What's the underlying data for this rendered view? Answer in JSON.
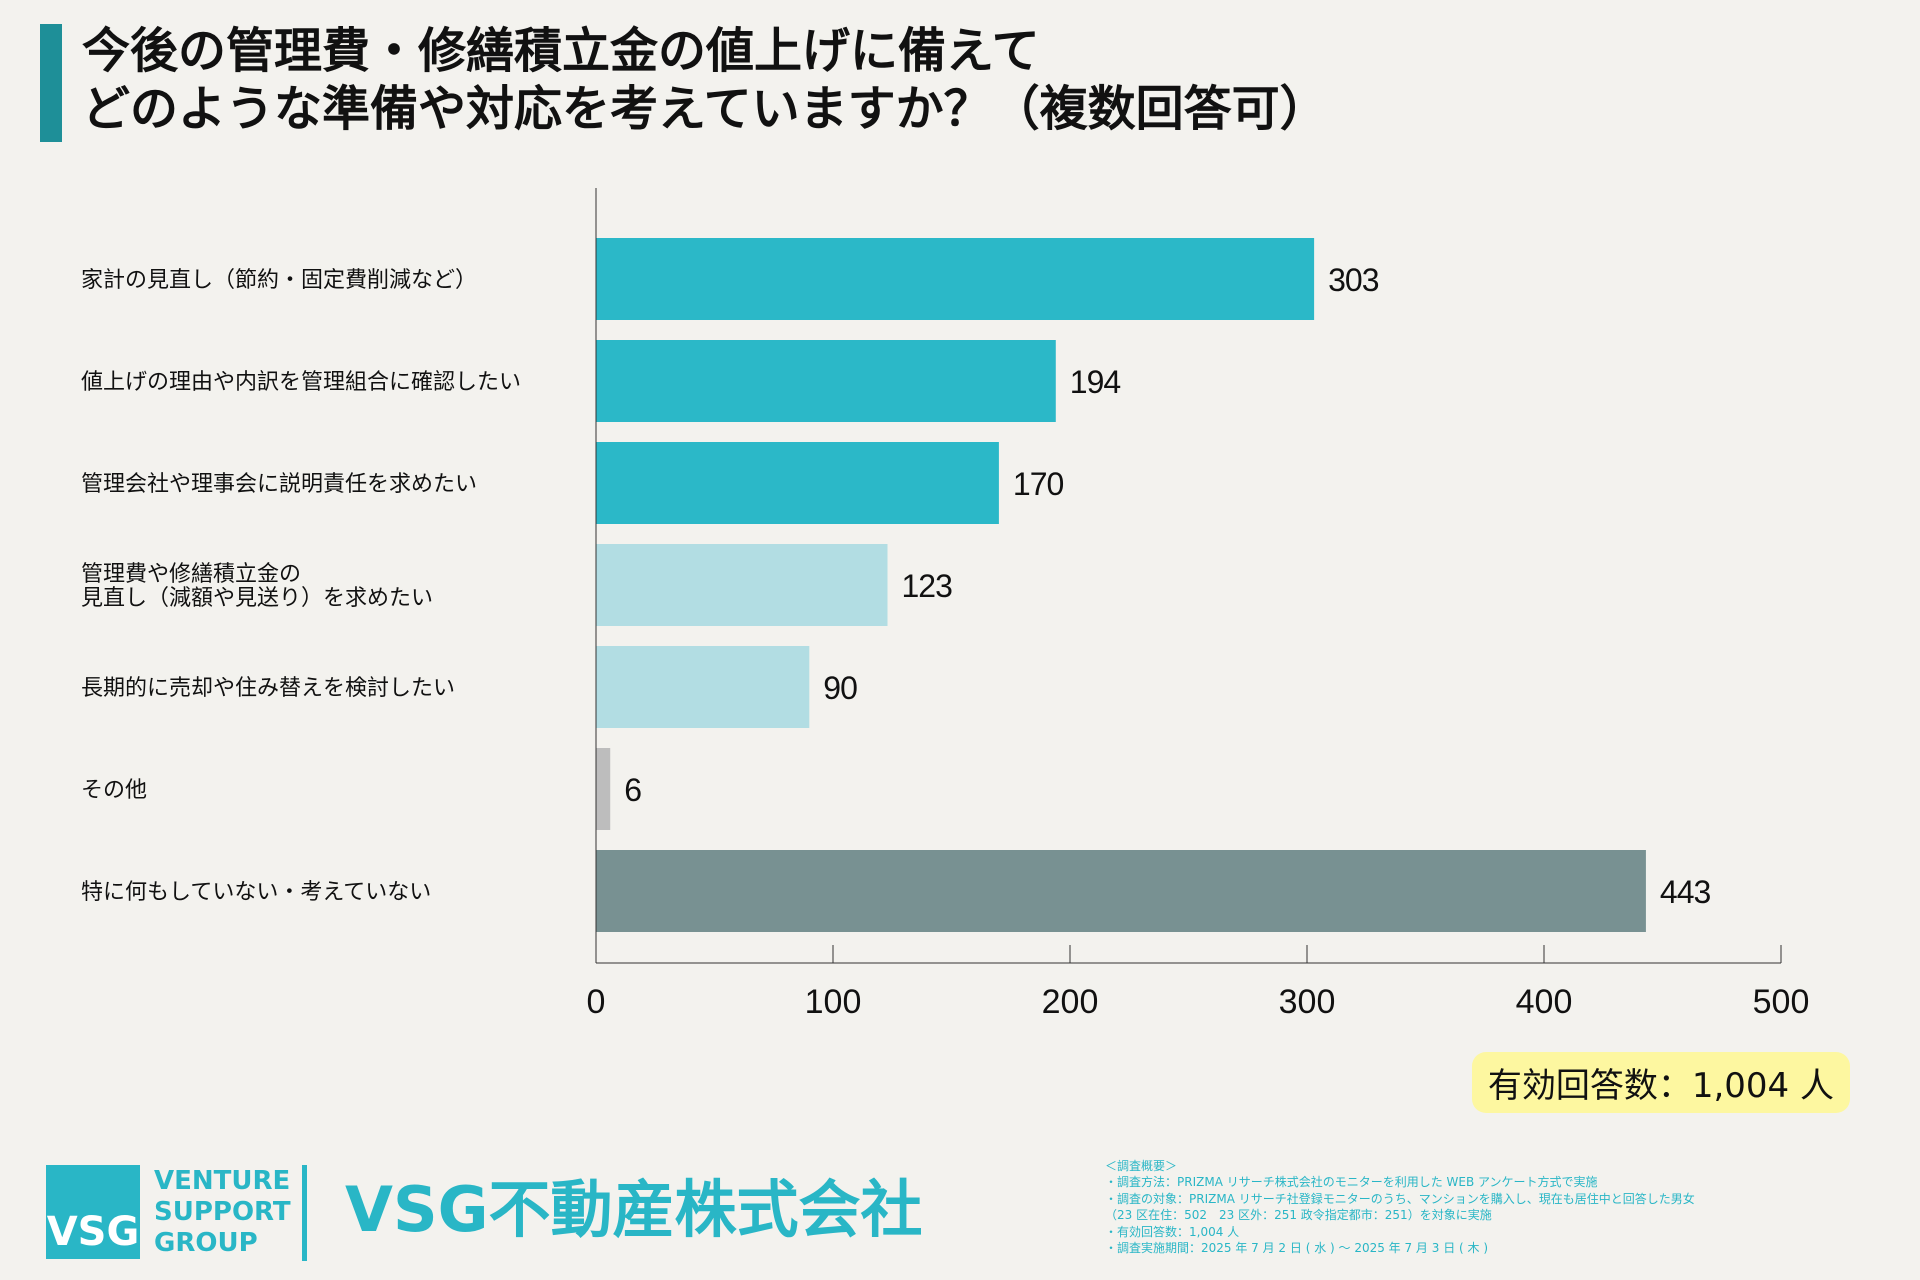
{
  "title": {
    "line1": "今後の管理費・修繕積立金の値上げに備えて",
    "line2": "どのような準備や対応を考えていますか？（複数回答可）"
  },
  "chart_data": {
    "type": "bar",
    "orientation": "horizontal",
    "categories": [
      [
        "家計の見直し（節約・固定費削減など）"
      ],
      [
        "値上げの理由や内訳を管理組合に確認したい"
      ],
      [
        "管理会社や理事会に説明責任を求めたい"
      ],
      [
        "管理費や修繕積立金の",
        "見直し（減額や見送り）を求めたい"
      ],
      [
        "長期的に売却や住み替えを検討したい"
      ],
      [
        "その他"
      ],
      [
        "特に何もしていない・考えていない"
      ]
    ],
    "values": [
      303,
      194,
      170,
      123,
      90,
      6,
      443
    ],
    "value_labels": [
      "303",
      "194",
      "170",
      "123",
      "90",
      "6",
      "443"
    ],
    "bar_colors": [
      "#2bb8c8",
      "#2bb8c8",
      "#2bb8c8",
      "#b2dde3",
      "#b2dde3",
      "#bdbdbd",
      "#789192"
    ],
    "xlim": [
      0,
      500
    ],
    "xticks": [
      0,
      100,
      200,
      300,
      400,
      500
    ],
    "xtick_labels": [
      "0",
      "100",
      "200",
      "300",
      "400",
      "500"
    ],
    "title": "今後の管理費・修繕積立金の値上げに備えてどのような準備や対応を考えていますか？（複数回答可）",
    "xlabel": "",
    "ylabel": ""
  },
  "respondents": "有効回答数：1,004 人",
  "logo": {
    "mark": "VSG",
    "word1": "VENTURE",
    "word2": "SUPPORT",
    "word3": "GROUP"
  },
  "company": "VSG不動産株式会社",
  "notes": {
    "heading": "＜調査概要＞",
    "line1": "・調査方法：PRIZMA リサーチ株式会社のモニターを利用した WEB アンケート方式で実施",
    "line2": "・調査の対象：PRIZMA リサーチ社登録モニターのうち、マンションを購入し、現在も居住中と回答した男女",
    "line3": "（23 区在住：502　23 区外：251 政令指定都市：251）を対象に実施",
    "line4": "・有効回答数：1,004 人",
    "line5": "・調査実施期間：2025 年 7 月 2 日 ( 水 ) ～ 2025 年 7 月 3 日 ( 木 )"
  }
}
